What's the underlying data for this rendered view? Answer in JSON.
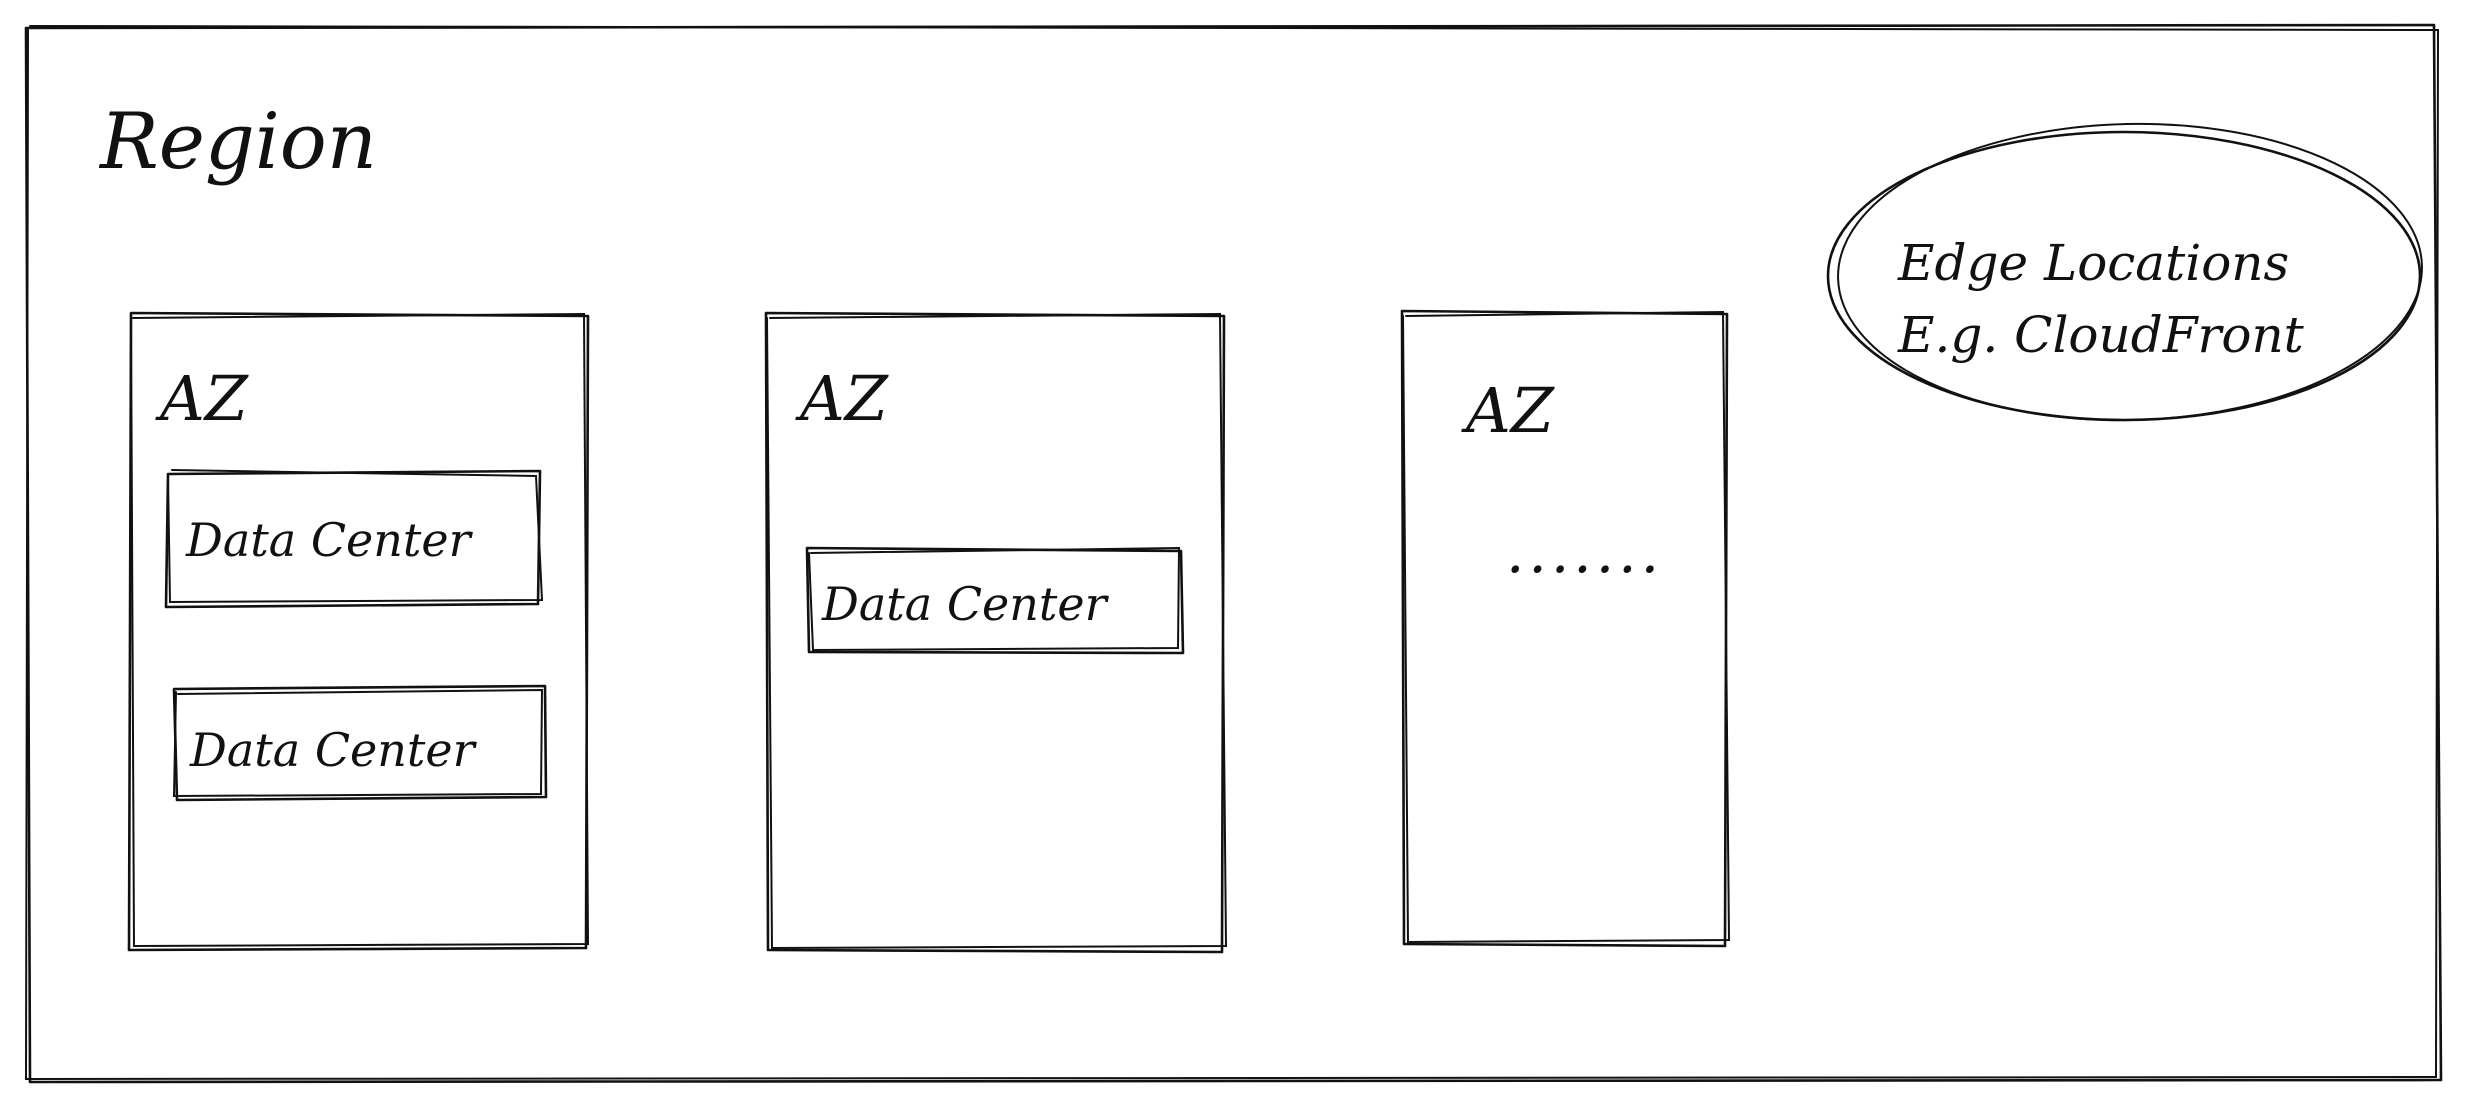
{
  "region": {
    "title": "Region"
  },
  "availability_zones": [
    {
      "label": "AZ",
      "data_centers": [
        "Data Center",
        "Data Center"
      ],
      "placeholder": ""
    },
    {
      "label": "AZ",
      "data_centers": [
        "Data Center"
      ],
      "placeholder": ""
    },
    {
      "label": "AZ",
      "data_centers": [],
      "placeholder": "......."
    }
  ],
  "edge_locations": {
    "line1": "Edge Locations",
    "line2": "E.g. CloudFront"
  },
  "colors": {
    "ink": "#111111",
    "background": "#ffffff"
  }
}
